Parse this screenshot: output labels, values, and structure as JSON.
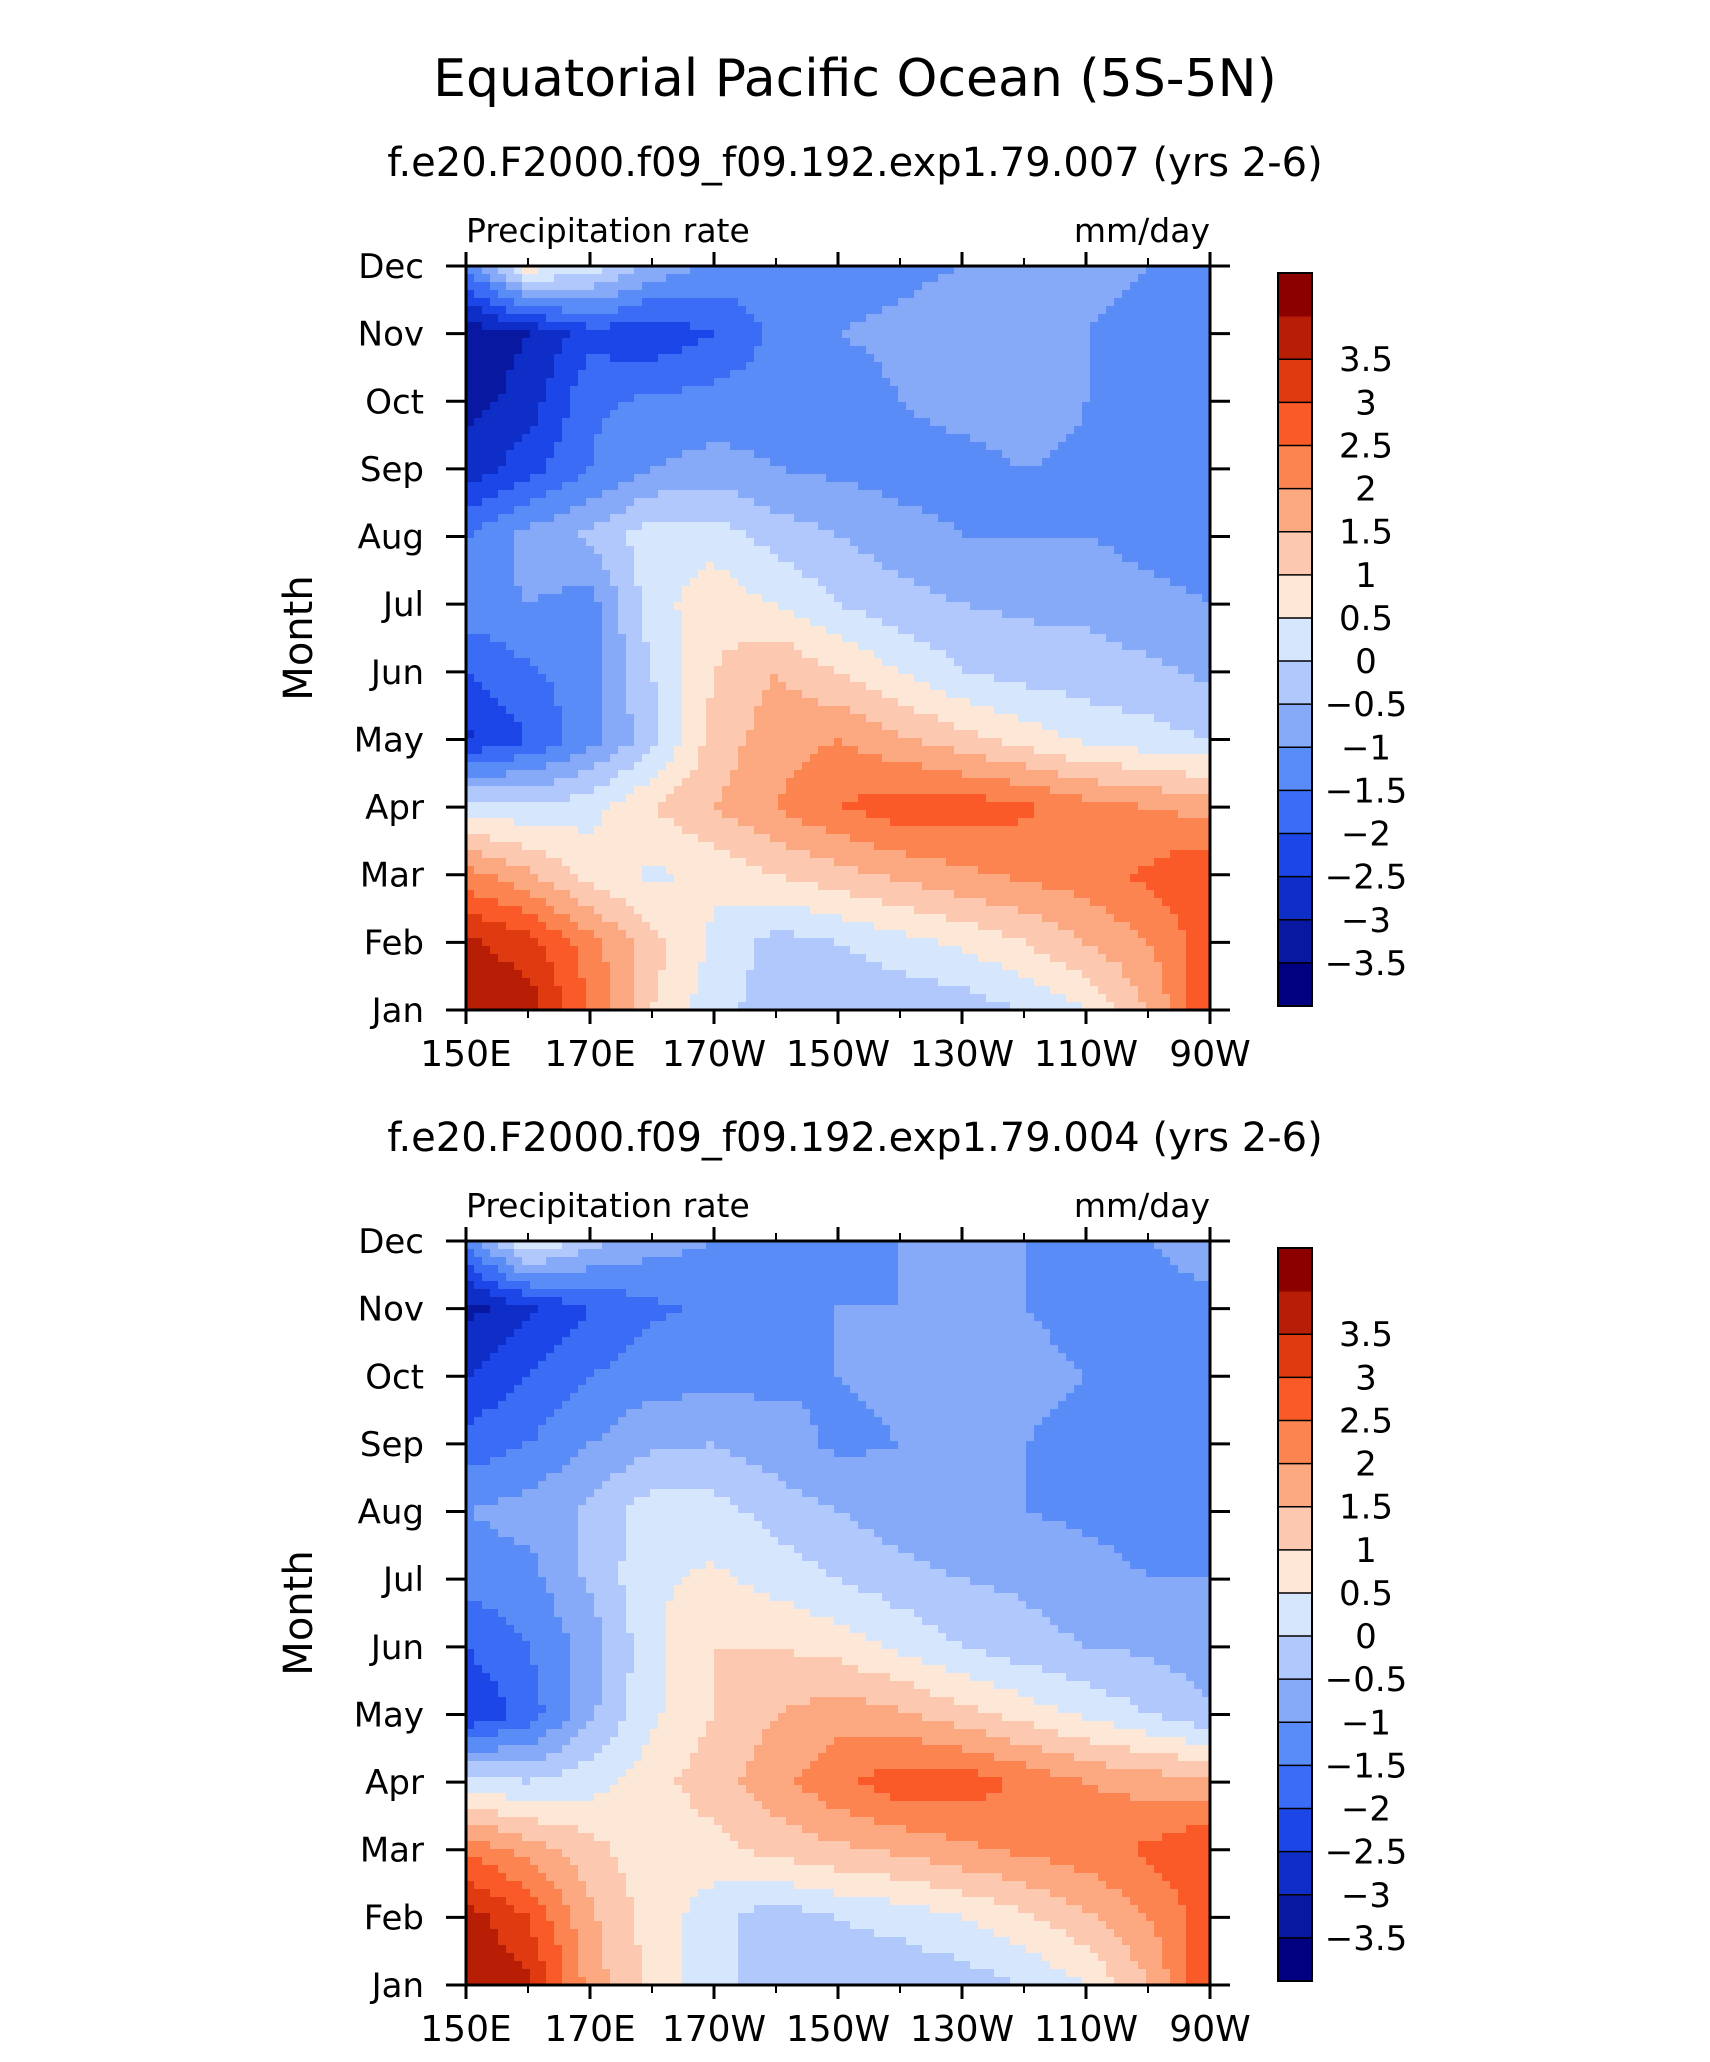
{
  "title": "Equatorial Pacific Ocean (5S-5N)",
  "colorbar": {
    "colors": [
      "#000080",
      "#0818a0",
      "#0f2ec8",
      "#1c46e8",
      "#3a6cf6",
      "#5a8cf8",
      "#86aaf8",
      "#b0c8fb",
      "#d6e6fc",
      "#fde8d8",
      "#fdc8b0",
      "#fca880",
      "#fb8450",
      "#f95a28",
      "#e03a10",
      "#b81e06",
      "#8c0000"
    ],
    "labels": [
      "-3.5",
      "-3",
      "-2.5",
      "-2",
      "-1.5",
      "-1",
      "-0.5",
      "0",
      "0.5",
      "1",
      "1.5",
      "2",
      "2.5",
      "3",
      "3.5"
    ]
  },
  "chart_data": [
    {
      "type": "heatmap",
      "subtitle": "f.e20.F2000.f09_f09.192.exp1.79.007 (yrs 2-6)",
      "variable_label": "Precipitation rate",
      "units_label": "mm/day",
      "ylabel": "Month",
      "x_ticks": [
        "150E",
        "170E",
        "170W",
        "150W",
        "130W",
        "110W",
        "90W"
      ],
      "y_ticks": [
        "Jan",
        "Feb",
        "Mar",
        "Apr",
        "May",
        "Jun",
        "Jul",
        "Aug",
        "Sep",
        "Oct",
        "Nov",
        "Dec"
      ],
      "x": [
        150,
        160,
        170,
        180,
        190,
        200,
        210,
        220,
        230,
        240,
        250,
        260,
        270
      ],
      "y": [
        "Jan",
        "Feb",
        "Mar",
        "Apr",
        "May",
        "Jun",
        "Jul",
        "Aug",
        "Sep",
        "Oct",
        "Nov",
        "Dec"
      ],
      "levels": [
        -3.5,
        -3,
        -2.5,
        -2,
        -1.5,
        -1,
        -0.5,
        0,
        0.5,
        1,
        1.5,
        2,
        2.5,
        3,
        3.5
      ],
      "z": [
        [
          4.0,
          3.8,
          2.5,
          1.0,
          0.2,
          -0.3,
          -0.4,
          -0.4,
          -0.3,
          0.0,
          0.5,
          1.5,
          3.0
        ],
        [
          3.6,
          3.2,
          2.2,
          1.2,
          0.4,
          -0.2,
          0.0,
          0.3,
          0.6,
          1.0,
          1.5,
          2.0,
          2.8
        ],
        [
          2.2,
          1.6,
          0.8,
          0.4,
          0.6,
          1.0,
          1.3,
          1.6,
          1.9,
          2.1,
          2.3,
          2.6,
          3.0
        ],
        [
          0.3,
          0.1,
          0.3,
          1.0,
          1.5,
          2.0,
          2.5,
          2.8,
          2.8,
          2.6,
          2.2,
          2.0,
          1.8
        ],
        [
          -2.6,
          -2.0,
          -1.2,
          -0.2,
          1.2,
          1.8,
          2.0,
          1.6,
          1.2,
          0.8,
          0.4,
          0.2,
          0.0
        ],
        [
          -2.0,
          -1.6,
          -1.2,
          0.0,
          1.0,
          1.5,
          1.0,
          0.5,
          0.0,
          -0.2,
          -0.3,
          -0.4,
          -0.6
        ],
        [
          -1.2,
          -1.0,
          -1.2,
          0.3,
          0.8,
          0.5,
          0.0,
          -0.3,
          -0.5,
          -0.6,
          -0.6,
          -0.8,
          -1.0
        ],
        [
          -1.5,
          -0.8,
          -0.4,
          0.3,
          0.3,
          -0.2,
          -0.5,
          -0.8,
          -1.0,
          -1.0,
          -1.0,
          -1.2,
          -1.3
        ],
        [
          -2.8,
          -2.2,
          -1.5,
          -1.0,
          -0.8,
          -1.0,
          -1.1,
          -1.2,
          -1.2,
          -1.0,
          -1.1,
          -1.3,
          -1.3
        ],
        [
          -3.2,
          -2.8,
          -1.6,
          -1.4,
          -1.3,
          -1.2,
          -1.2,
          -1.0,
          -0.8,
          -0.7,
          -1.0,
          -1.3,
          -1.2
        ],
        [
          -3.4,
          -3.0,
          -2.2,
          -2.4,
          -2.0,
          -1.4,
          -1.0,
          -0.9,
          -0.8,
          -0.9,
          -1.0,
          -1.1,
          -1.0
        ],
        [
          -1.5,
          0.8,
          0.3,
          -0.6,
          -1.1,
          -1.3,
          -1.2,
          -1.1,
          -1.0,
          -0.9,
          -0.9,
          -1.0,
          -1.0
        ]
      ]
    },
    {
      "type": "heatmap",
      "subtitle": "f.e20.F2000.f09_f09.192.exp1.79.004 (yrs 2-6)",
      "variable_label": "Precipitation rate",
      "units_label": "mm/day",
      "ylabel": "Month",
      "x_ticks": [
        "150E",
        "170E",
        "170W",
        "150W",
        "130W",
        "110W",
        "90W"
      ],
      "y_ticks": [
        "Jan",
        "Feb",
        "Mar",
        "Apr",
        "May",
        "Jun",
        "Jul",
        "Aug",
        "Sep",
        "Oct",
        "Nov",
        "Dec"
      ],
      "x": [
        150,
        160,
        170,
        180,
        190,
        200,
        210,
        220,
        230,
        240,
        250,
        260,
        270
      ],
      "y": [
        "Jan",
        "Feb",
        "Mar",
        "Apr",
        "May",
        "Jun",
        "Jul",
        "Aug",
        "Sep",
        "Oct",
        "Nov",
        "Dec"
      ],
      "levels": [
        -3.5,
        -3,
        -2.5,
        -2,
        -1.5,
        -1,
        -0.5,
        0,
        0.5,
        1,
        1.5,
        2,
        2.5,
        3,
        3.5
      ],
      "z": [
        [
          4.0,
          3.6,
          1.8,
          0.8,
          0.2,
          -0.3,
          -0.4,
          -0.4,
          -0.3,
          0.0,
          0.5,
          1.5,
          3.0
        ],
        [
          3.8,
          3.0,
          1.6,
          0.8,
          0.2,
          -0.3,
          0.0,
          0.2,
          0.5,
          0.9,
          1.4,
          2.0,
          2.8
        ],
        [
          2.4,
          1.8,
          1.2,
          0.6,
          0.8,
          1.2,
          1.4,
          1.6,
          1.9,
          2.1,
          2.3,
          2.6,
          3.0
        ],
        [
          0.2,
          0.0,
          0.3,
          0.8,
          1.3,
          1.8,
          2.4,
          2.8,
          2.8,
          2.4,
          2.0,
          1.8,
          1.6
        ],
        [
          -2.5,
          -1.8,
          -0.6,
          0.4,
          1.0,
          1.5,
          1.8,
          1.6,
          1.2,
          0.8,
          0.4,
          0.0,
          -0.4
        ],
        [
          -2.0,
          -1.5,
          -0.8,
          0.4,
          1.0,
          1.0,
          0.8,
          0.4,
          0.0,
          -0.3,
          -0.5,
          -0.6,
          -0.8
        ],
        [
          -1.3,
          -1.2,
          -0.4,
          0.4,
          0.6,
          0.3,
          0.0,
          -0.3,
          -0.5,
          -0.6,
          -0.8,
          -1.0,
          -1.0
        ],
        [
          -1.0,
          -0.8,
          -0.4,
          0.3,
          0.2,
          -0.2,
          -0.5,
          -0.8,
          -1.0,
          -1.0,
          -1.1,
          -1.2,
          -1.3
        ],
        [
          -1.8,
          -1.5,
          -1.0,
          -0.6,
          -0.5,
          -0.8,
          -1.1,
          -1.0,
          -0.9,
          -1.0,
          -1.1,
          -1.2,
          -1.3
        ],
        [
          -2.5,
          -2.0,
          -1.5,
          -1.2,
          -1.2,
          -1.1,
          -1.0,
          -0.9,
          -0.9,
          -0.9,
          -1.0,
          -1.2,
          -1.3
        ],
        [
          -3.2,
          -2.6,
          -2.0,
          -1.6,
          -1.4,
          -1.2,
          -1.0,
          -1.0,
          -1.0,
          -1.0,
          -1.1,
          -1.2,
          -1.1
        ],
        [
          -1.5,
          0.6,
          -0.3,
          -0.8,
          -1.0,
          -1.1,
          -1.1,
          -1.0,
          -1.0,
          -1.0,
          -1.0,
          -1.0,
          -0.8
        ]
      ]
    }
  ]
}
